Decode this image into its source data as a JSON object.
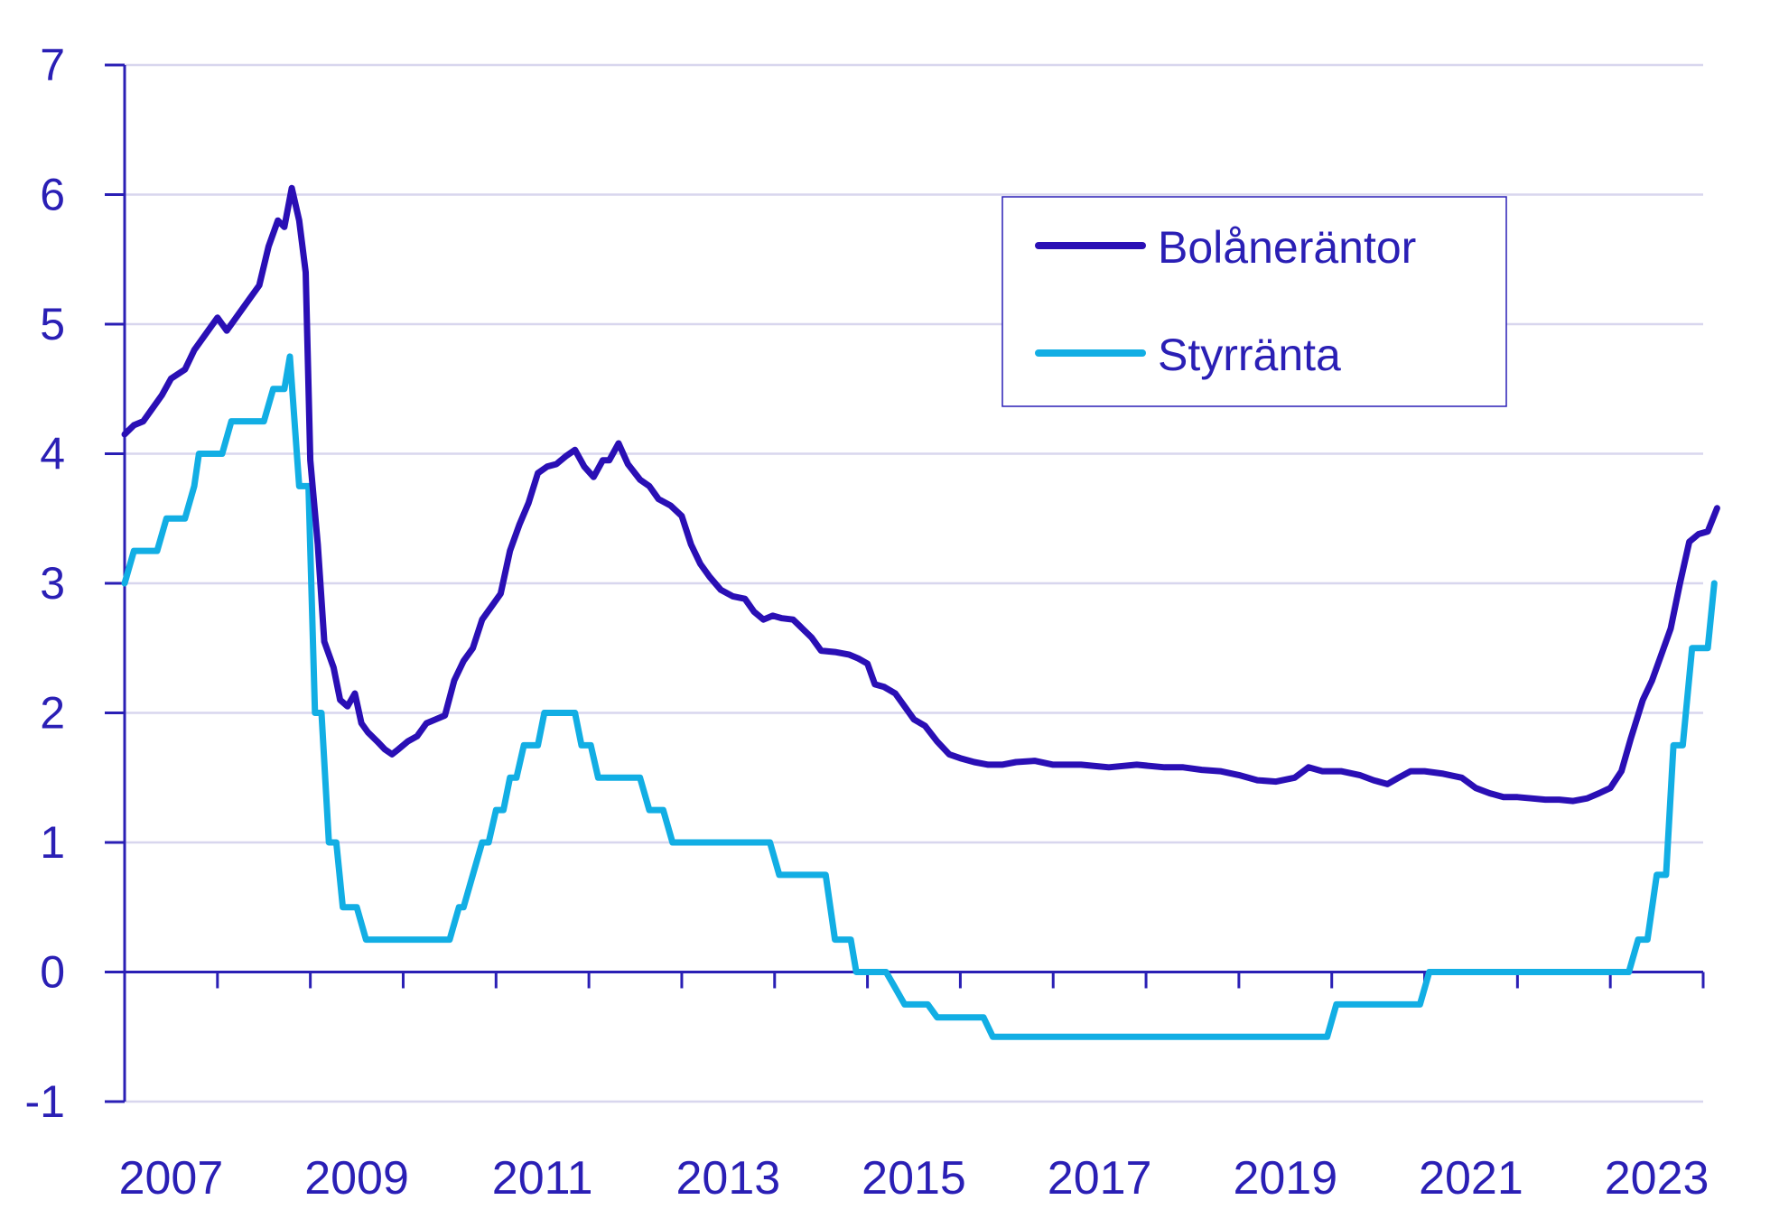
{
  "chart_data": {
    "type": "line",
    "title": "",
    "xlabel": "",
    "ylabel": "",
    "xlim": [
      2007,
      2024
    ],
    "ylim": [
      -1,
      7
    ],
    "grid": true,
    "legend_position": "top-right",
    "colors": {
      "axis": "#2a1fb5",
      "text": "#2a1fb5",
      "grid": "#d8d6ee"
    },
    "x_ticks": [
      2007,
      2008,
      2009,
      2010,
      2011,
      2012,
      2013,
      2014,
      2015,
      2016,
      2017,
      2018,
      2019,
      2020,
      2021,
      2022,
      2023,
      2024
    ],
    "x_tick_labels": [
      {
        "x": 2007.5,
        "label": "2007"
      },
      {
        "x": 2009.5,
        "label": "2009"
      },
      {
        "x": 2011.5,
        "label": "2011"
      },
      {
        "x": 2013.5,
        "label": "2013"
      },
      {
        "x": 2015.5,
        "label": "2015"
      },
      {
        "x": 2017.5,
        "label": "2017"
      },
      {
        "x": 2019.5,
        "label": "2019"
      },
      {
        "x": 2021.5,
        "label": "2021"
      },
      {
        "x": 2023.5,
        "label": "2023"
      }
    ],
    "y_ticks": [
      -1,
      0,
      1,
      2,
      3,
      4,
      5,
      6,
      7
    ],
    "y_tick_labels": [
      "-1",
      "0",
      "1",
      "2",
      "3",
      "4",
      "5",
      "6",
      "7"
    ],
    "series": [
      {
        "name": "Bolåneräntor",
        "color": "#2a0fb5",
        "points": [
          [
            2007.0,
            4.15
          ],
          [
            2007.1,
            4.22
          ],
          [
            2007.2,
            4.25
          ],
          [
            2007.3,
            4.35
          ],
          [
            2007.4,
            4.45
          ],
          [
            2007.5,
            4.58
          ],
          [
            2007.65,
            4.65
          ],
          [
            2007.75,
            4.8
          ],
          [
            2007.9,
            4.95
          ],
          [
            2008.0,
            5.05
          ],
          [
            2008.1,
            4.95
          ],
          [
            2008.2,
            5.05
          ],
          [
            2008.35,
            5.2
          ],
          [
            2008.45,
            5.3
          ],
          [
            2008.55,
            5.6
          ],
          [
            2008.65,
            5.8
          ],
          [
            2008.72,
            5.75
          ],
          [
            2008.8,
            6.05
          ],
          [
            2008.88,
            5.8
          ],
          [
            2008.95,
            5.4
          ],
          [
            2009.0,
            3.95
          ],
          [
            2009.08,
            3.3
          ],
          [
            2009.15,
            2.55
          ],
          [
            2009.25,
            2.35
          ],
          [
            2009.32,
            2.1
          ],
          [
            2009.4,
            2.05
          ],
          [
            2009.48,
            2.15
          ],
          [
            2009.55,
            1.92
          ],
          [
            2009.62,
            1.85
          ],
          [
            2009.72,
            1.78
          ],
          [
            2009.8,
            1.72
          ],
          [
            2009.88,
            1.68
          ],
          [
            2009.95,
            1.72
          ],
          [
            2010.05,
            1.78
          ],
          [
            2010.15,
            1.82
          ],
          [
            2010.25,
            1.92
          ],
          [
            2010.35,
            1.95
          ],
          [
            2010.45,
            1.98
          ],
          [
            2010.55,
            2.25
          ],
          [
            2010.65,
            2.4
          ],
          [
            2010.75,
            2.5
          ],
          [
            2010.85,
            2.72
          ],
          [
            2010.95,
            2.82
          ],
          [
            2011.05,
            2.92
          ],
          [
            2011.15,
            3.25
          ],
          [
            2011.25,
            3.45
          ],
          [
            2011.35,
            3.62
          ],
          [
            2011.45,
            3.85
          ],
          [
            2011.55,
            3.9
          ],
          [
            2011.65,
            3.92
          ],
          [
            2011.75,
            3.98
          ],
          [
            2011.85,
            4.03
          ],
          [
            2011.95,
            3.9
          ],
          [
            2012.05,
            3.82
          ],
          [
            2012.15,
            3.95
          ],
          [
            2012.22,
            3.95
          ],
          [
            2012.32,
            4.08
          ],
          [
            2012.42,
            3.92
          ],
          [
            2012.55,
            3.8
          ],
          [
            2012.65,
            3.75
          ],
          [
            2012.75,
            3.65
          ],
          [
            2012.88,
            3.6
          ],
          [
            2013.0,
            3.52
          ],
          [
            2013.1,
            3.3
          ],
          [
            2013.2,
            3.15
          ],
          [
            2013.3,
            3.05
          ],
          [
            2013.42,
            2.95
          ],
          [
            2013.55,
            2.9
          ],
          [
            2013.68,
            2.88
          ],
          [
            2013.78,
            2.78
          ],
          [
            2013.88,
            2.72
          ],
          [
            2013.98,
            2.75
          ],
          [
            2014.08,
            2.73
          ],
          [
            2014.2,
            2.72
          ],
          [
            2014.3,
            2.65
          ],
          [
            2014.4,
            2.58
          ],
          [
            2014.5,
            2.48
          ],
          [
            2014.65,
            2.47
          ],
          [
            2014.8,
            2.45
          ],
          [
            2014.9,
            2.42
          ],
          [
            2015.0,
            2.38
          ],
          [
            2015.08,
            2.22
          ],
          [
            2015.18,
            2.2
          ],
          [
            2015.3,
            2.15
          ],
          [
            2015.4,
            2.05
          ],
          [
            2015.5,
            1.95
          ],
          [
            2015.62,
            1.9
          ],
          [
            2015.75,
            1.78
          ],
          [
            2015.88,
            1.68
          ],
          [
            2016.0,
            1.65
          ],
          [
            2016.15,
            1.62
          ],
          [
            2016.3,
            1.6
          ],
          [
            2016.45,
            1.6
          ],
          [
            2016.6,
            1.62
          ],
          [
            2016.8,
            1.63
          ],
          [
            2017.0,
            1.6
          ],
          [
            2017.3,
            1.6
          ],
          [
            2017.6,
            1.58
          ],
          [
            2017.9,
            1.6
          ],
          [
            2018.2,
            1.58
          ],
          [
            2018.4,
            1.58
          ],
          [
            2018.6,
            1.56
          ],
          [
            2018.8,
            1.55
          ],
          [
            2019.0,
            1.52
          ],
          [
            2019.2,
            1.48
          ],
          [
            2019.4,
            1.47
          ],
          [
            2019.6,
            1.5
          ],
          [
            2019.75,
            1.58
          ],
          [
            2019.9,
            1.55
          ],
          [
            2020.1,
            1.55
          ],
          [
            2020.3,
            1.52
          ],
          [
            2020.45,
            1.48
          ],
          [
            2020.6,
            1.45
          ],
          [
            2020.72,
            1.5
          ],
          [
            2020.85,
            1.55
          ],
          [
            2021.0,
            1.55
          ],
          [
            2021.2,
            1.53
          ],
          [
            2021.4,
            1.5
          ],
          [
            2021.55,
            1.42
          ],
          [
            2021.7,
            1.38
          ],
          [
            2021.85,
            1.35
          ],
          [
            2022.0,
            1.35
          ],
          [
            2022.15,
            1.34
          ],
          [
            2022.3,
            1.33
          ],
          [
            2022.45,
            1.33
          ],
          [
            2022.6,
            1.32
          ],
          [
            2022.75,
            1.34
          ],
          [
            2022.88,
            1.38
          ],
          [
            2023.0,
            1.42
          ],
          [
            2023.12,
            1.55
          ],
          [
            2023.22,
            1.8
          ],
          [
            2023.35,
            2.1
          ],
          [
            2023.45,
            2.25
          ],
          [
            2023.55,
            2.45
          ],
          [
            2023.65,
            2.65
          ],
          [
            2023.75,
            3.0
          ],
          [
            2023.85,
            3.32
          ],
          [
            2023.95,
            3.38
          ],
          [
            2024.05,
            3.4
          ],
          [
            2024.15,
            3.58
          ]
        ]
      },
      {
        "name": "Styrränta",
        "color": "#12aee4",
        "points": [
          [
            2007.0,
            3.0
          ],
          [
            2007.1,
            3.25
          ],
          [
            2007.35,
            3.25
          ],
          [
            2007.45,
            3.5
          ],
          [
            2007.65,
            3.5
          ],
          [
            2007.75,
            3.75
          ],
          [
            2007.8,
            4.0
          ],
          [
            2008.05,
            4.0
          ],
          [
            2008.15,
            4.25
          ],
          [
            2008.5,
            4.25
          ],
          [
            2008.6,
            4.5
          ],
          [
            2008.72,
            4.5
          ],
          [
            2008.78,
            4.75
          ],
          [
            2008.88,
            3.75
          ],
          [
            2008.98,
            3.75
          ],
          [
            2009.05,
            2.0
          ],
          [
            2009.12,
            2.0
          ],
          [
            2009.2,
            1.0
          ],
          [
            2009.28,
            1.0
          ],
          [
            2009.35,
            0.5
          ],
          [
            2009.5,
            0.5
          ],
          [
            2009.6,
            0.25
          ],
          [
            2010.5,
            0.25
          ],
          [
            2010.6,
            0.5
          ],
          [
            2010.65,
            0.5
          ],
          [
            2010.75,
            0.75
          ],
          [
            2010.85,
            1.0
          ],
          [
            2010.92,
            1.0
          ],
          [
            2011.0,
            1.25
          ],
          [
            2011.08,
            1.25
          ],
          [
            2011.15,
            1.5
          ],
          [
            2011.22,
            1.5
          ],
          [
            2011.3,
            1.75
          ],
          [
            2011.45,
            1.75
          ],
          [
            2011.52,
            2.0
          ],
          [
            2011.85,
            2.0
          ],
          [
            2011.92,
            1.75
          ],
          [
            2012.02,
            1.75
          ],
          [
            2012.1,
            1.5
          ],
          [
            2012.55,
            1.5
          ],
          [
            2012.65,
            1.25
          ],
          [
            2012.8,
            1.25
          ],
          [
            2012.9,
            1.0
          ],
          [
            2013.95,
            1.0
          ],
          [
            2014.05,
            0.75
          ],
          [
            2014.55,
            0.75
          ],
          [
            2014.65,
            0.25
          ],
          [
            2014.82,
            0.25
          ],
          [
            2014.88,
            0.0
          ],
          [
            2015.2,
            0.0
          ],
          [
            2015.28,
            -0.1
          ],
          [
            2015.4,
            -0.25
          ],
          [
            2015.65,
            -0.25
          ],
          [
            2015.75,
            -0.35
          ],
          [
            2016.25,
            -0.35
          ],
          [
            2016.35,
            -0.5
          ],
          [
            2019.95,
            -0.5
          ],
          [
            2020.05,
            -0.25
          ],
          [
            2020.95,
            -0.25
          ],
          [
            2021.05,
            0.0
          ],
          [
            2023.2,
            0.0
          ],
          [
            2023.3,
            0.25
          ],
          [
            2023.4,
            0.25
          ],
          [
            2023.5,
            0.75
          ],
          [
            2023.6,
            0.75
          ],
          [
            2023.68,
            1.75
          ],
          [
            2023.78,
            1.75
          ],
          [
            2023.88,
            2.5
          ],
          [
            2024.05,
            2.5
          ],
          [
            2024.12,
            3.0
          ]
        ]
      }
    ]
  }
}
